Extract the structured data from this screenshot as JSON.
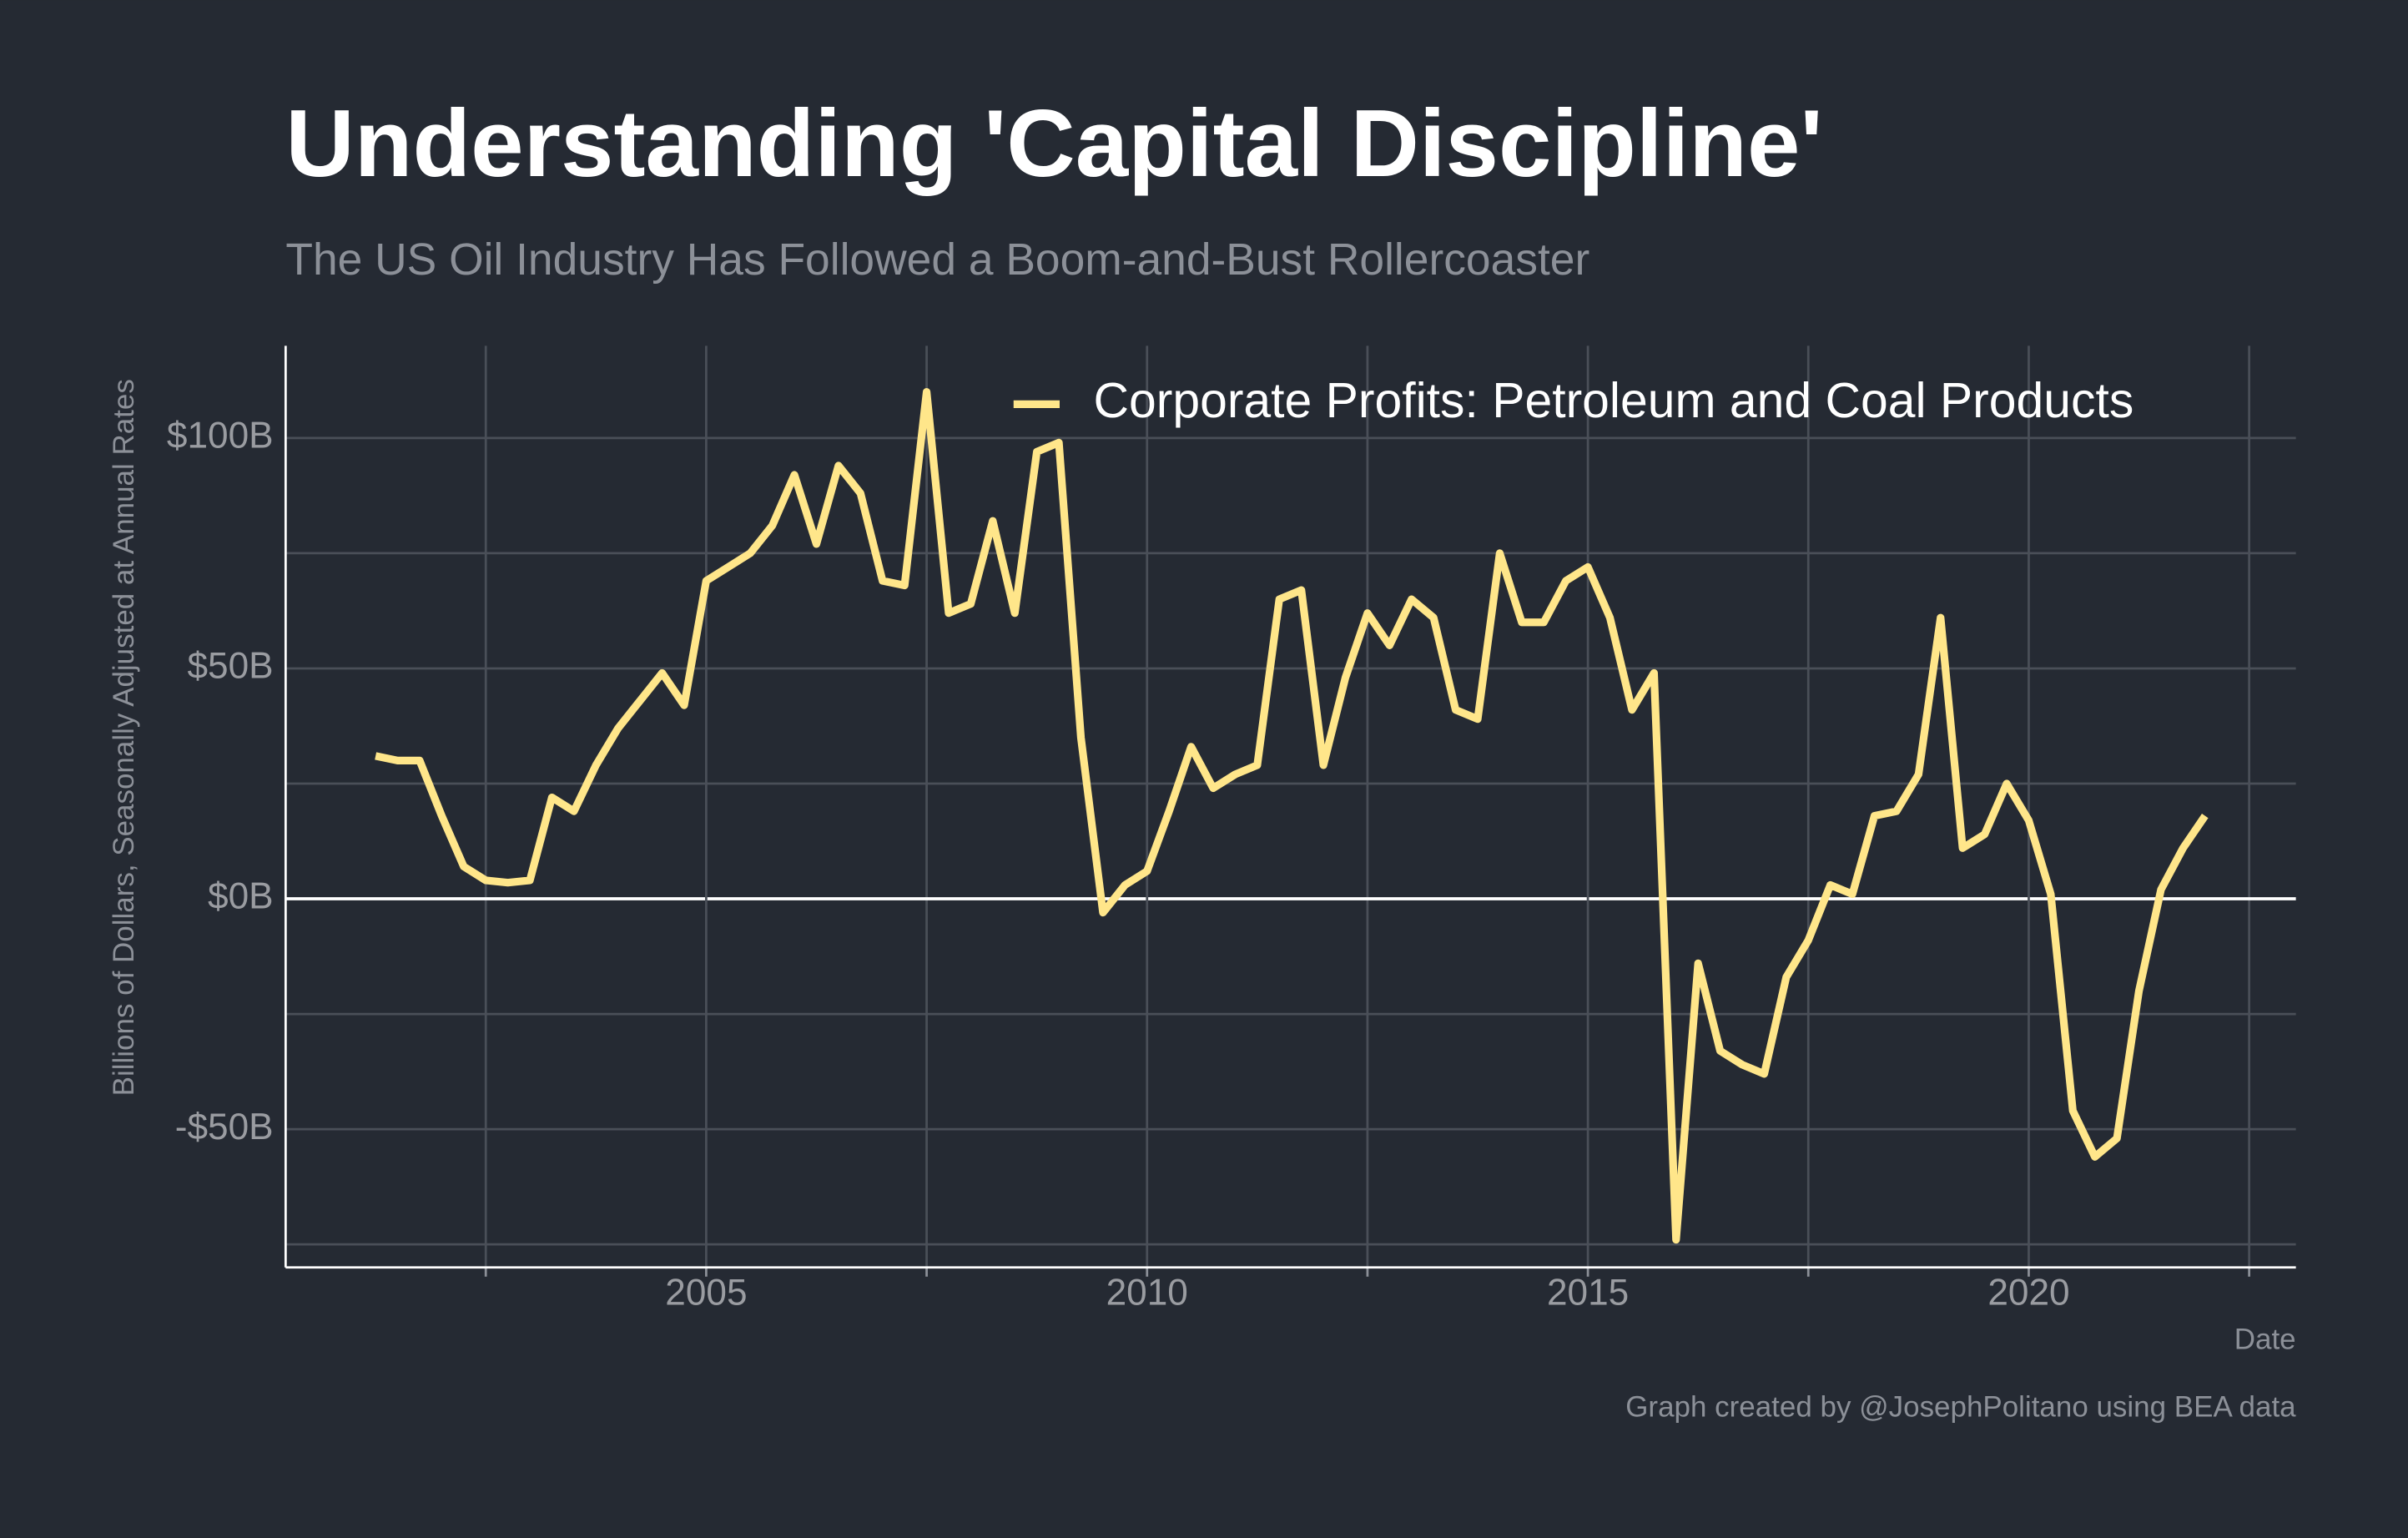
{
  "chart_data": {
    "type": "line",
    "title": "Understanding 'Capital Discipline'",
    "subtitle": "The US Oil Industry Has Followed a Boom-and-Bust Rollercoaster",
    "y_label": "Billions of Dollars, Seasonally Adjusted at Annual Rates",
    "x_label": "Date",
    "caption": "Graph created by @JosephPolitano using BEA data",
    "legend": "top-right",
    "grid": true,
    "x": [
      2001.25,
      2001.5,
      2001.75,
      2002,
      2002.25,
      2002.5,
      2002.75,
      2003,
      2003.25,
      2003.5,
      2003.75,
      2004,
      2004.25,
      2004.5,
      2004.75,
      2005,
      2005.25,
      2005.5,
      2005.75,
      2006,
      2006.25,
      2006.5,
      2006.75,
      2007,
      2007.25,
      2007.5,
      2007.75,
      2008,
      2008.25,
      2008.5,
      2008.75,
      2009,
      2009.25,
      2009.5,
      2009.75,
      2010,
      2010.25,
      2010.5,
      2010.75,
      2011,
      2011.25,
      2011.5,
      2011.75,
      2012,
      2012.25,
      2012.5,
      2012.75,
      2013,
      2013.25,
      2013.5,
      2013.75,
      2014,
      2014.25,
      2014.5,
      2014.75,
      2015,
      2015.25,
      2015.5,
      2015.75,
      2016,
      2016.25,
      2016.5,
      2016.75,
      2017,
      2017.25,
      2017.5,
      2017.75,
      2018,
      2018.25,
      2018.5,
      2018.75,
      2019,
      2019.25,
      2019.5,
      2019.75,
      2020,
      2020.25,
      2020.5,
      2020.75,
      2021,
      2021.25,
      2021.5,
      2021.75,
      2022
    ],
    "series": [
      {
        "name": "Corporate Profits: Petroleum and Coal Products",
        "color": "#ffe68a",
        "values": [
          31,
          30,
          30,
          18,
          7,
          4,
          3.5,
          4,
          22,
          19,
          29,
          37,
          43,
          49,
          42,
          69,
          72,
          75,
          81,
          92,
          77,
          94,
          88,
          69,
          68,
          110,
          62,
          64,
          82,
          62,
          97,
          99,
          35,
          -3,
          3,
          6,
          19,
          33,
          24,
          27,
          29,
          65,
          67,
          29,
          48,
          62,
          55,
          65,
          61,
          41,
          39,
          75,
          60,
          60,
          69,
          72,
          61,
          41,
          49,
          -74,
          -14,
          -33,
          -36,
          -38,
          -17,
          -9,
          3,
          1,
          18,
          19,
          27,
          61,
          11,
          14,
          25,
          17,
          1,
          -46,
          -56,
          -52,
          -20,
          2,
          11,
          18
        ]
      }
    ],
    "xlim": [
      2000.23,
      2023.03
    ],
    "xticks": [
      2005,
      2010,
      2015,
      2020
    ],
    "xminor": [
      2002.5,
      2007.5,
      2012.5,
      2017.5,
      2022.5
    ],
    "ylim": [
      -80,
      120
    ],
    "yticks": [
      {
        "value": -50,
        "label": "-$50B"
      },
      {
        "value": 0,
        "label": "$0B"
      },
      {
        "value": 50,
        "label": "$50B"
      },
      {
        "value": 100,
        "label": "$100B"
      }
    ],
    "yminor": [
      -75,
      -25,
      25,
      75
    ]
  }
}
